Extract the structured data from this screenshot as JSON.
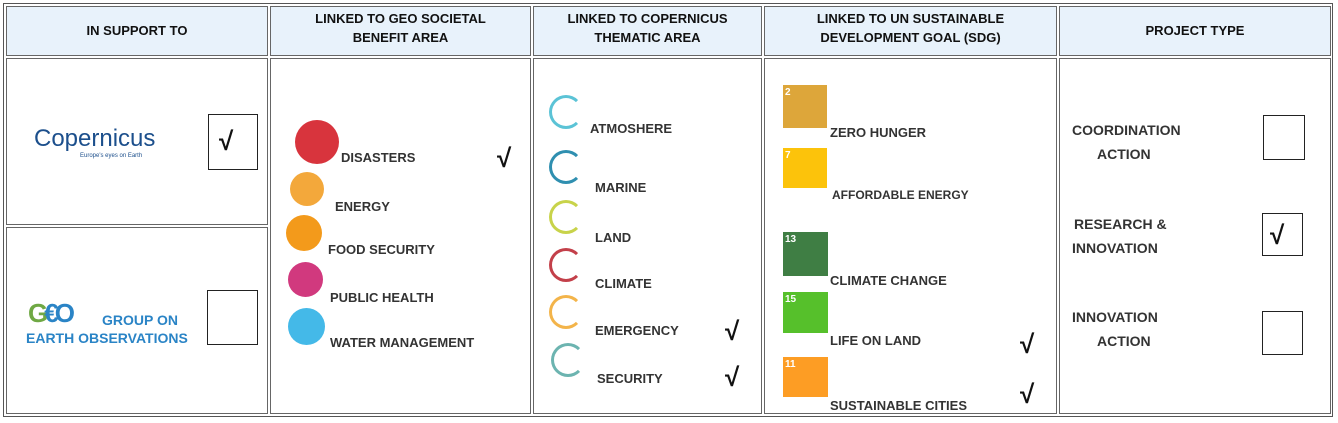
{
  "header": [
    [
      "IN SUPPORT TO"
    ],
    [
      "LINKED TO GEO SOCIETAL",
      "BENEFIT AREA"
    ],
    [
      "LINKED TO COPERNICUS",
      "THEMATIC AREA"
    ],
    [
      "LINKED TO UN SUSTAINABLE",
      "DEVELOPMENT GOAL (SDG)"
    ],
    [
      "PROJECT TYPE"
    ]
  ],
  "support": [
    {
      "logo": "Copernicus",
      "tagline": "Europe's eyes on Earth",
      "mark": "√"
    },
    {
      "logo_lines": [
        "GROUP ON",
        "EARTH OBSERVATIONS"
      ]
    }
  ],
  "benefit_areas": [
    {
      "label": "DISASTERS",
      "mark": "√"
    },
    {
      "label": "ENERGY"
    },
    {
      "label": "FOOD SECURITY"
    },
    {
      "label": "PUBLIC HEALTH"
    },
    {
      "label": "WATER MANAGEMENT"
    }
  ],
  "thematic_areas": [
    {
      "label": "ATMOSHERE"
    },
    {
      "label": "MARINE"
    },
    {
      "label": "LAND"
    },
    {
      "label": "CLIMATE"
    },
    {
      "label": "EMERGENCY",
      "mark": "√"
    },
    {
      "label": "SECURITY",
      "mark": "√"
    }
  ],
  "sdgs": [
    {
      "number": "2",
      "label": "ZERO HUNGER"
    },
    {
      "number": "7",
      "label": "AFFORDABLE ENERGY"
    },
    {
      "number": "13",
      "label": "CLIMATE CHANGE"
    },
    {
      "number": "15",
      "label": "LIFE ON LAND",
      "mark": "√"
    },
    {
      "number": "11",
      "label": "SUSTAINABLE CITIES",
      "mark": "√"
    }
  ],
  "project_types": [
    {
      "lines": [
        "COORDINATION",
        "ACTION"
      ]
    },
    {
      "lines": [
        "RESEARCH &",
        "INNOVATION"
      ],
      "mark": "√"
    },
    {
      "lines": [
        "INNOVATION",
        "ACTION"
      ]
    }
  ]
}
